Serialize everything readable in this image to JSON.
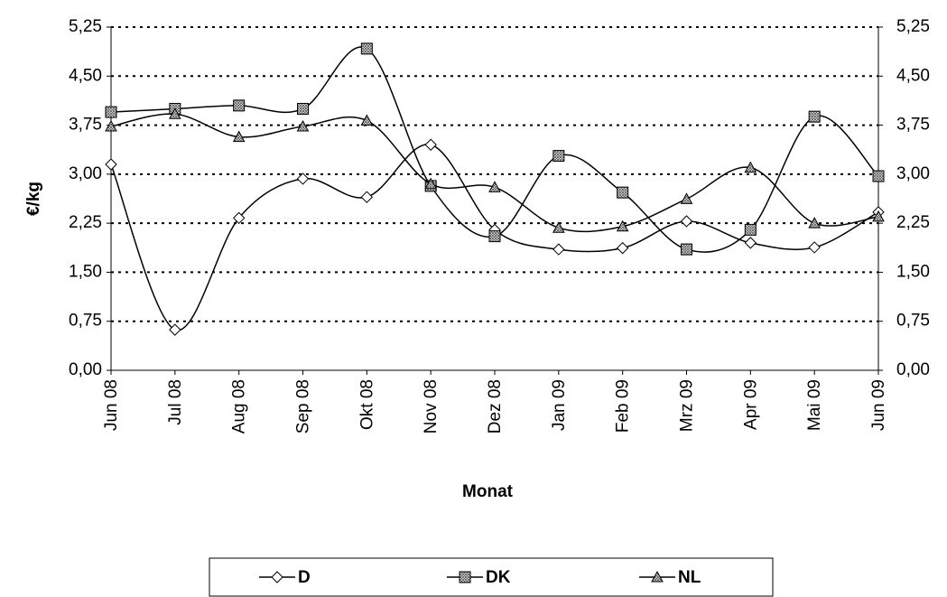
{
  "chart_data": {
    "type": "line",
    "x_label": "Monat",
    "y_label": "€/kg",
    "categories": [
      "Jun 08",
      "Jul 08",
      "Aug 08",
      "Sep 08",
      "Okt 08",
      "Nov 08",
      "Dez 08",
      "Jan 09",
      "Feb 09",
      "Mrz 09",
      "Apr 09",
      "Mai 09",
      "Jun 09"
    ],
    "series": [
      {
        "name": "D",
        "color": "#000000",
        "marker": "diamond",
        "values": [
          3.15,
          0.62,
          2.33,
          2.93,
          2.65,
          3.45,
          2.15,
          1.85,
          1.87,
          2.28,
          1.95,
          1.88,
          2.42
        ]
      },
      {
        "name": "DK",
        "color": "#000000",
        "marker": "square",
        "values": [
          3.95,
          4.0,
          4.05,
          4.0,
          4.92,
          2.82,
          2.05,
          3.28,
          2.72,
          1.85,
          2.15,
          3.88,
          2.97
        ]
      },
      {
        "name": "NL",
        "color": "#000000",
        "marker": "triangle",
        "values": [
          3.73,
          3.92,
          3.57,
          3.73,
          3.82,
          2.85,
          2.8,
          2.18,
          2.2,
          2.62,
          3.1,
          2.25,
          2.35
        ]
      }
    ],
    "ylim": [
      0,
      5.25
    ],
    "yticks": [
      {
        "value": 0,
        "label": "0,00"
      },
      {
        "value": 0.75,
        "label": "0,75"
      },
      {
        "value": 1.5,
        "label": "1,50"
      },
      {
        "value": 2.25,
        "label": "2,25"
      },
      {
        "value": 3,
        "label": "3,00"
      },
      {
        "value": 3.75,
        "label": "3,75"
      },
      {
        "value": 4.5,
        "label": "4,50"
      },
      {
        "value": 5.25,
        "label": "5,25"
      }
    ],
    "y2lim": [
      0,
      5.25
    ],
    "y2ticks": [
      {
        "value": 0,
        "label": "0,00"
      },
      {
        "value": 0.75,
        "label": "0,75"
      },
      {
        "value": 1.5,
        "label": "1,50"
      },
      {
        "value": 2.25,
        "label": "2,25"
      },
      {
        "value": 3,
        "label": "3,00"
      },
      {
        "value": 3.75,
        "label": "3,75"
      },
      {
        "value": 4.5,
        "label": "4,50"
      },
      {
        "value": 5.25,
        "label": "5,25"
      }
    ],
    "grid": true,
    "smooth": true,
    "legend": "bottom"
  }
}
